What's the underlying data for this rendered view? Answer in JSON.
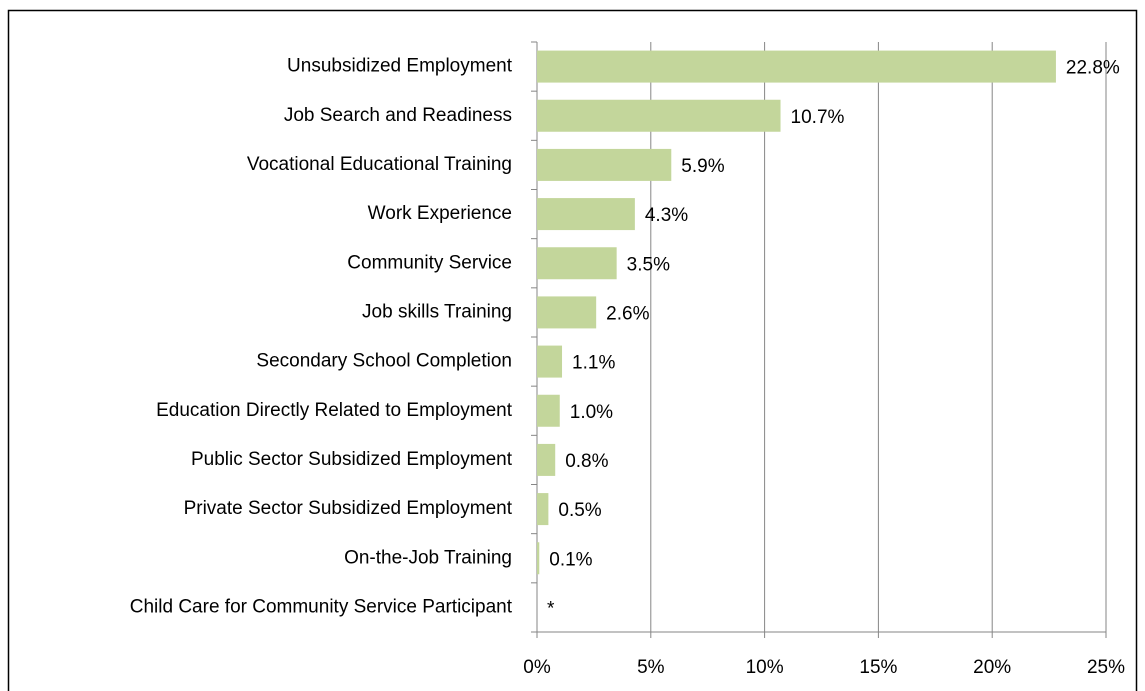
{
  "chart_data": {
    "type": "bar",
    "orientation": "horizontal",
    "categories": [
      "Unsubsidized Employment",
      "Job Search and Readiness",
      "Vocational Educational Training",
      "Work Experience",
      "Community Service",
      "Job skills Training",
      "Secondary School Completion",
      "Education Directly Related to Employment",
      "Public Sector Subsidized Employment",
      "Private Sector Subsidized Employment",
      "On-the-Job Training",
      "Child Care for Community Service Participant"
    ],
    "values": [
      22.8,
      10.7,
      5.9,
      4.3,
      3.5,
      2.6,
      1.1,
      1.0,
      0.8,
      0.5,
      0.1,
      null
    ],
    "value_labels": [
      "22.8%",
      "10.7%",
      "5.9%",
      "4.3%",
      "3.5%",
      "2.6%",
      "1.1%",
      "1.0%",
      "0.8%",
      "0.5%",
      "0.1%",
      "*"
    ],
    "color": "#c3d69b",
    "xlim": [
      0,
      25
    ],
    "xticks": [
      {
        "value": 0,
        "label": "0%"
      },
      {
        "value": 5,
        "label": "5%"
      },
      {
        "value": 10,
        "label": "10%"
      },
      {
        "value": 15,
        "label": "15%"
      },
      {
        "value": 20,
        "label": "20%"
      },
      {
        "value": 25,
        "label": "25%"
      }
    ],
    "grid": true
  }
}
